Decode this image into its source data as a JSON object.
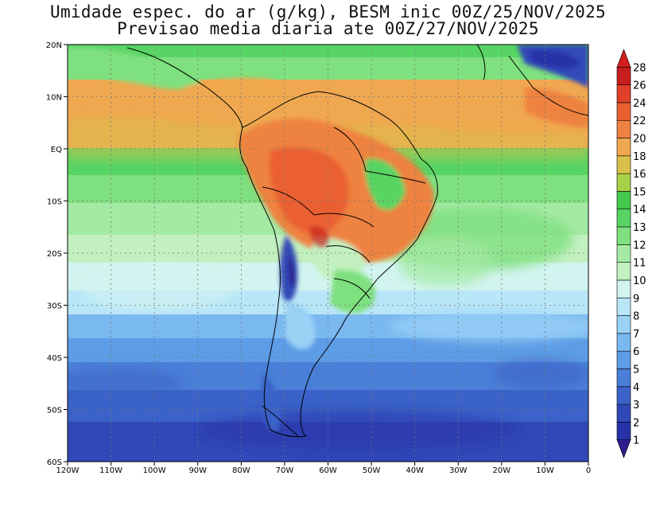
{
  "title_line1": "Umidade espec. do ar (g/kg), BESM inic 00Z/25/NOV/2025",
  "title_line2": "Previsao media diaria ate 00Z/27/NOV/2025",
  "lat_labels": [
    "20N",
    "10N",
    "EQ",
    "10S",
    "20S",
    "30S",
    "40S",
    "50S",
    "60S"
  ],
  "lon_labels": [
    "120W",
    "110W",
    "100W",
    "90W",
    "80W",
    "70W",
    "60W",
    "50W",
    "40W",
    "30W",
    "20W",
    "10W",
    "0"
  ],
  "colorbar": {
    "levels": [
      "1",
      "2",
      "3",
      "4",
      "5",
      "6",
      "7",
      "8",
      "9",
      "10",
      "11",
      "12",
      "13",
      "14",
      "15",
      "16",
      "18",
      "20",
      "22",
      "24",
      "26",
      "28"
    ],
    "colors": [
      "#2d1e8c",
      "#2832a8",
      "#3048b8",
      "#3a62c8",
      "#4a7fd8",
      "#5d9ce6",
      "#7ab8f0",
      "#9ad2f6",
      "#b8e6f8",
      "#d2f4f0",
      "#c2f0c0",
      "#a4eaa4",
      "#7ee07e",
      "#58d464",
      "#44c84e",
      "#a8d048",
      "#d8c04a",
      "#f0a850",
      "#ee8240",
      "#ea6030",
      "#e0402a",
      "#c81e1e",
      "#d21e1e"
    ]
  }
}
